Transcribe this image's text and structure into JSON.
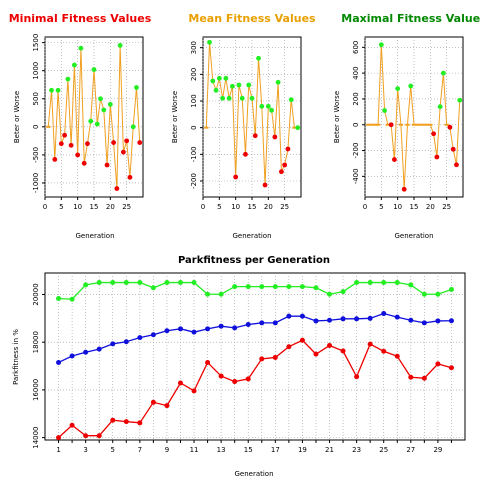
{
  "colors": {
    "red": "#ee0000",
    "orange": "#e8a000",
    "green": "#008800",
    "line": "#f0a020",
    "bright_green": "#22ee22",
    "blue": "#1010dd",
    "grid": "#9a9a9a"
  },
  "chart_data": [
    {
      "type": "line",
      "title": "Minimal Fitness Values",
      "xlabel": "Generation",
      "ylabel": "Beter or Worse",
      "xlim": [
        0,
        30
      ],
      "ylim": [
        -1250,
        1600
      ],
      "xticks": [
        0,
        5,
        10,
        15,
        20,
        25
      ],
      "yticks": [
        -1000,
        -500,
        0,
        500,
        1000,
        1500
      ],
      "x": [
        1,
        2,
        3,
        4,
        5,
        6,
        7,
        8,
        9,
        10,
        11,
        12,
        13,
        14,
        15,
        16,
        17,
        18,
        19,
        20,
        21,
        22,
        23,
        24,
        25,
        26,
        27,
        28,
        29
      ],
      "values": [
        0,
        650,
        -580,
        650,
        -300,
        -150,
        850,
        -330,
        1100,
        -500,
        1400,
        -650,
        -300,
        100,
        1020,
        50,
        500,
        300,
        -680,
        400,
        -280,
        -1100,
        1450,
        -450,
        -250,
        -900,
        0,
        700,
        -280
      ],
      "marker_colors": [
        "o",
        "g",
        "r",
        "g",
        "r",
        "r",
        "g",
        "r",
        "g",
        "r",
        "g",
        "r",
        "r",
        "g",
        "g",
        "g",
        "g",
        "g",
        "r",
        "g",
        "r",
        "r",
        "g",
        "r",
        "r",
        "r",
        "g",
        "g",
        "r"
      ]
    },
    {
      "type": "line",
      "title": "Mean Fitness Values",
      "xlabel": "Generation",
      "ylabel": "Beter or Worse",
      "xlim": [
        0,
        30
      ],
      "ylim": [
        -260,
        340
      ],
      "xticks": [
        0,
        5,
        10,
        15,
        20,
        25
      ],
      "yticks": [
        -200,
        -100,
        0,
        100,
        200,
        300
      ],
      "x": [
        1,
        2,
        3,
        4,
        5,
        6,
        7,
        8,
        9,
        10,
        11,
        12,
        13,
        14,
        15,
        16,
        17,
        18,
        19,
        20,
        21,
        22,
        23,
        24,
        25,
        26,
        27,
        28,
        29
      ],
      "values": [
        0,
        320,
        175,
        140,
        185,
        110,
        185,
        110,
        155,
        -185,
        160,
        110,
        -100,
        160,
        110,
        -30,
        260,
        80,
        -215,
        80,
        65,
        -35,
        170,
        -165,
        -140,
        -80,
        105,
        0,
        0
      ],
      "marker_colors": [
        "o",
        "g",
        "g",
        "g",
        "g",
        "g",
        "g",
        "g",
        "g",
        "r",
        "g",
        "g",
        "r",
        "g",
        "g",
        "r",
        "g",
        "g",
        "r",
        "g",
        "g",
        "r",
        "g",
        "r",
        "r",
        "r",
        "g",
        "o",
        "g"
      ]
    },
    {
      "type": "line",
      "title": "Maximal Fitness Values",
      "xlabel": "Generation",
      "ylabel": "Beter or Worse",
      "xlim": [
        0,
        30
      ],
      "ylim": [
        -560,
        680
      ],
      "xticks": [
        0,
        5,
        10,
        15,
        20,
        25
      ],
      "yticks": [
        -400,
        -200,
        0,
        200,
        400,
        600
      ],
      "x": [
        1,
        2,
        3,
        4,
        5,
        6,
        7,
        8,
        9,
        10,
        11,
        12,
        13,
        14,
        15,
        16,
        17,
        18,
        19,
        20,
        21,
        22,
        23,
        24,
        25,
        26,
        27,
        28,
        29
      ],
      "values": [
        0,
        0,
        0,
        0,
        620,
        110,
        0,
        0,
        -270,
        280,
        0,
        -500,
        0,
        300,
        0,
        0,
        0,
        0,
        0,
        0,
        -70,
        -250,
        140,
        400,
        0,
        -20,
        -190,
        -310,
        190
      ],
      "marker_colors": [
        "o",
        "o",
        "o",
        "o",
        "g",
        "g",
        "o",
        "r",
        "r",
        "g",
        "o",
        "r",
        "o",
        "g",
        "o",
        "o",
        "o",
        "o",
        "o",
        "o",
        "r",
        "r",
        "g",
        "g",
        "o",
        "r",
        "r",
        "r",
        "g"
      ]
    },
    {
      "type": "line",
      "title": "Parkfitness per Generation",
      "xlabel": "Generation",
      "ylabel": "Parkfitness in %",
      "xlim": [
        0,
        31
      ],
      "ylim": [
        13900,
        20900
      ],
      "xticks": [
        1,
        2,
        3,
        4,
        5,
        6,
        7,
        8,
        9,
        10,
        11,
        12,
        13,
        14,
        15,
        16,
        17,
        18,
        19,
        20,
        21,
        22,
        23,
        24,
        25,
        26,
        27,
        28,
        29,
        30
      ],
      "xtick_labels": [
        "1",
        "",
        "3",
        "",
        "5",
        "",
        "7",
        "",
        "9",
        "",
        "11",
        "",
        "13",
        "",
        "15",
        "",
        "17",
        "",
        "19",
        "",
        "21",
        "",
        "23",
        "",
        "25",
        "",
        "27",
        "",
        "29",
        ""
      ],
      "yticks": [
        14000,
        16000,
        18000,
        20000
      ],
      "x": [
        1,
        2,
        3,
        4,
        5,
        6,
        7,
        8,
        9,
        10,
        11,
        12,
        13,
        14,
        15,
        16,
        17,
        18,
        19,
        20,
        21,
        22,
        23,
        24,
        25,
        26,
        27,
        28,
        29,
        30
      ],
      "series": [
        {
          "values": [
            19830,
            19800,
            20400,
            20500,
            20500,
            20500,
            20500,
            20280,
            20500,
            20500,
            20500,
            20010,
            20010,
            20330,
            20330,
            20330,
            20330,
            20330,
            20330,
            20280,
            20010,
            20120,
            20500,
            20500,
            20500,
            20500,
            20400,
            20010,
            20010,
            20210
          ]
        },
        {
          "values": [
            17150,
            17420,
            17580,
            17710,
            17930,
            18020,
            18190,
            18310,
            18480,
            18560,
            18420,
            18560,
            18670,
            18600,
            18740,
            18810,
            18810,
            19090,
            19090,
            18890,
            18920,
            18980,
            18980,
            19000,
            19200,
            19050,
            18920,
            18810,
            18890,
            18900
          ]
        },
        {
          "values": [
            14000,
            14520,
            14080,
            14080,
            14730,
            14670,
            14620,
            15480,
            15340,
            16290,
            15960,
            17150,
            16580,
            16350,
            16460,
            17300,
            17360,
            17810,
            18080,
            17500,
            17860,
            17630,
            16550,
            17920,
            17620,
            17410,
            16530,
            16490,
            17090,
            16930
          ]
        }
      ]
    }
  ]
}
